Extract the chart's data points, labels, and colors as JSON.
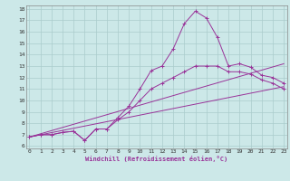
{
  "xlabel": "Windchill (Refroidissement éolien,°C)",
  "xlim": [
    0,
    23
  ],
  "ylim": [
    6,
    18
  ],
  "xticks": [
    0,
    1,
    2,
    3,
    4,
    5,
    6,
    7,
    8,
    9,
    10,
    11,
    12,
    13,
    14,
    15,
    16,
    17,
    18,
    19,
    20,
    21,
    22,
    23
  ],
  "yticks": [
    6,
    7,
    8,
    9,
    10,
    11,
    12,
    13,
    14,
    15,
    16,
    17,
    18
  ],
  "bg_color": "#cce8e8",
  "line_color": "#993399",
  "grid_color": "#aacccc",
  "lines": [
    {
      "x": [
        0,
        1,
        2,
        3,
        4,
        5,
        6,
        7,
        8,
        9,
        10,
        11,
        12,
        13,
        14,
        15,
        16,
        17,
        18,
        19,
        20,
        21,
        22,
        23
      ],
      "y": [
        6.8,
        7.0,
        7.0,
        7.2,
        7.3,
        6.5,
        7.5,
        7.5,
        8.5,
        9.5,
        11.0,
        12.6,
        13.0,
        14.5,
        16.7,
        17.8,
        17.2,
        15.5,
        13.0,
        13.2,
        12.9,
        12.2,
        12.0,
        11.5
      ],
      "marker": true
    },
    {
      "x": [
        0,
        1,
        2,
        3,
        4,
        5,
        6,
        7,
        8,
        9,
        10,
        11,
        12,
        13,
        14,
        15,
        16,
        17,
        18,
        19,
        20,
        21,
        22,
        23
      ],
      "y": [
        6.8,
        7.0,
        7.0,
        7.2,
        7.3,
        6.5,
        7.5,
        7.5,
        8.3,
        9.0,
        10.0,
        11.0,
        11.5,
        12.0,
        12.5,
        13.0,
        13.0,
        13.0,
        12.5,
        12.5,
        12.3,
        11.8,
        11.5,
        11.0
      ],
      "marker": true
    },
    {
      "x": [
        0,
        23
      ],
      "y": [
        6.8,
        13.2
      ],
      "marker": false
    },
    {
      "x": [
        0,
        23
      ],
      "y": [
        6.8,
        11.2
      ],
      "marker": false
    }
  ]
}
